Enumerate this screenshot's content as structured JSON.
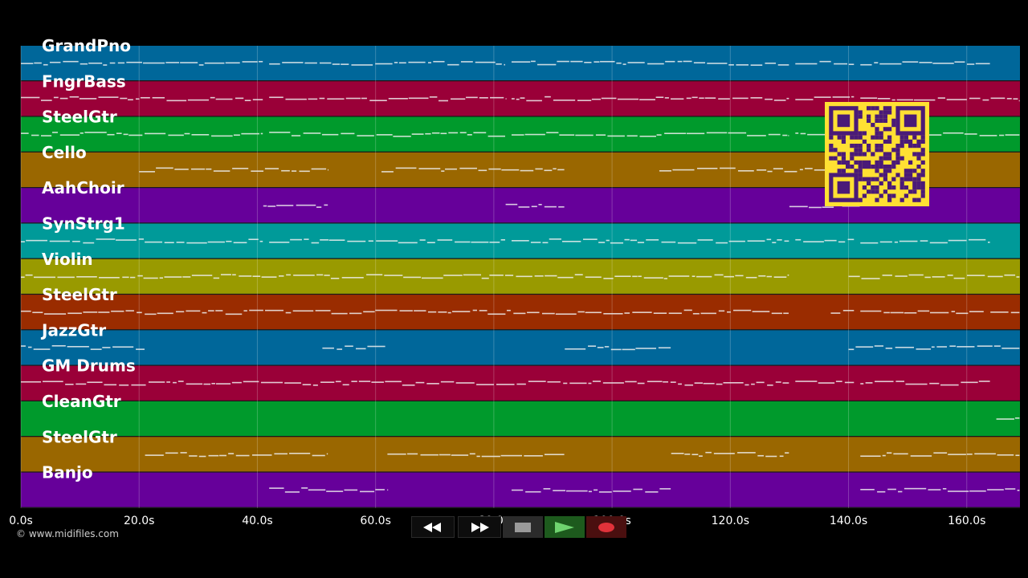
{
  "tracks": [
    {
      "name": "GrandPno",
      "color": "#00679a"
    },
    {
      "name": "FngrBass",
      "color": "#9a0038"
    },
    {
      "name": "SteelGtr",
      "color": "#009a2c"
    },
    {
      "name": "Cello",
      "color": "#9a6700"
    },
    {
      "name": "AahChoir",
      "color": "#66009a"
    },
    {
      "name": "SynStrg1",
      "color": "#009a99"
    },
    {
      "name": "Violin",
      "color": "#999a00"
    },
    {
      "name": "SteelGtr",
      "color": "#9a2c00"
    },
    {
      "name": "JazzGtr",
      "color": "#00679a"
    },
    {
      "name": "GM Drums",
      "color": "#9a0038"
    },
    {
      "name": "CleanGtr",
      "color": "#009a2c"
    },
    {
      "name": "SteelGtr",
      "color": "#9a6700"
    },
    {
      "name": "Banjo",
      "color": "#66009a"
    }
  ],
  "timeline": {
    "ticks": [
      "0.0s",
      "20.0s",
      "40.0s",
      "60.0s",
      "80.0s",
      "100.0s",
      "120.0s",
      "140.0s",
      "160.0s"
    ],
    "tick_seconds": [
      0,
      20,
      40,
      60,
      80,
      100,
      120,
      140,
      160
    ],
    "max_seconds": 169
  },
  "copyright": "© www.midifiles.com",
  "transport": {
    "rewind": "rewind-icon",
    "forward": "fast-forward-icon",
    "stop": "stop-icon",
    "play": "play-icon",
    "record": "record-icon"
  },
  "qr_code": {
    "fg": "#4a1a78",
    "bg": "#ffe033"
  }
}
